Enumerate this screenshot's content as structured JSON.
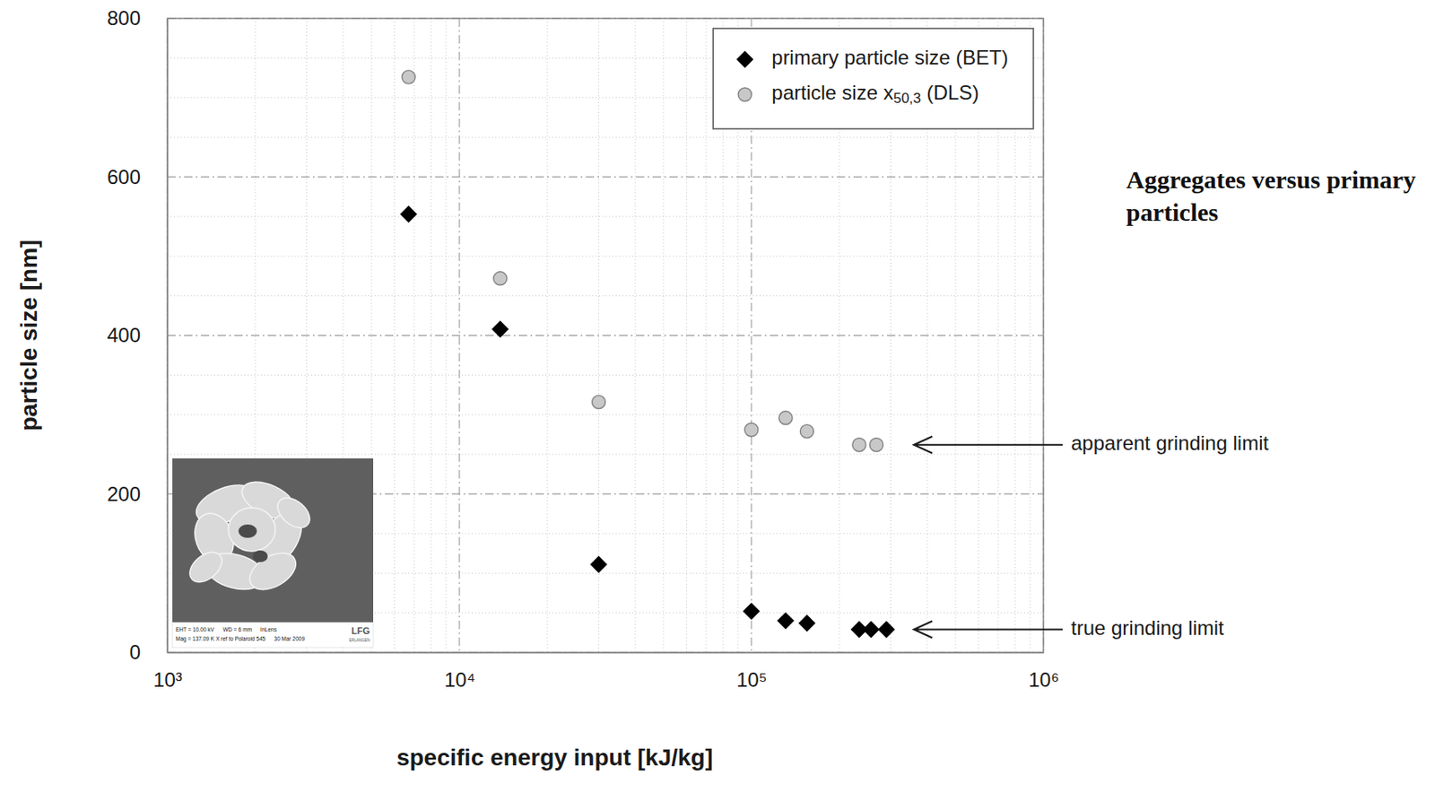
{
  "chart_data": {
    "type": "scatter",
    "title": "Aggregates versus primary particles",
    "xlabel": "specific energy input [kJ/kg]",
    "ylabel": "particle size [nm]",
    "log": "x",
    "grid": true,
    "legend": "upper right",
    "xlim": [
      1000,
      1000000
    ],
    "ylim": [
      0,
      800
    ],
    "xticks": [
      {
        "value": 1000,
        "label": "10³"
      },
      {
        "value": 10000,
        "label": "10⁴"
      },
      {
        "value": 100000,
        "label": "10⁵"
      },
      {
        "value": 1000000,
        "label": "10⁶"
      }
    ],
    "yticks": [
      0,
      200,
      400,
      600,
      800
    ],
    "series": [
      {
        "name": "primary particle size (BET)",
        "color": "#000000",
        "marker": "diamond",
        "x": [
          6700,
          13800,
          30000,
          100000,
          131000,
          155000,
          234000,
          257000,
          290000
        ],
        "values": [
          553,
          408,
          111,
          52,
          40,
          37,
          29,
          29,
          29
        ]
      },
      {
        "name": "particle size x50,3 (DLS)",
        "color": "#c8c8c8",
        "marker": "circle",
        "x": [
          6700,
          13800,
          30000,
          100000,
          131000,
          155000,
          234000,
          268000
        ],
        "values": [
          726,
          472,
          316,
          281,
          296,
          279,
          262,
          262
        ]
      }
    ],
    "annotations": [
      {
        "text": "apparent grinding limit",
        "x": 360000,
        "y": 262
      },
      {
        "text": "true grinding limit",
        "x": 360000,
        "y": 29
      }
    ],
    "inset": {
      "info": [
        [
          "EHT = 10.00 kV",
          "WD = 6 mm",
          "InLens"
        ],
        [
          "Mag = 137.09 K X ref to Polaroid 545",
          "30 Mar 2009"
        ]
      ],
      "logo": "LFG",
      "logo_sub": "ERLANGEN"
    }
  }
}
